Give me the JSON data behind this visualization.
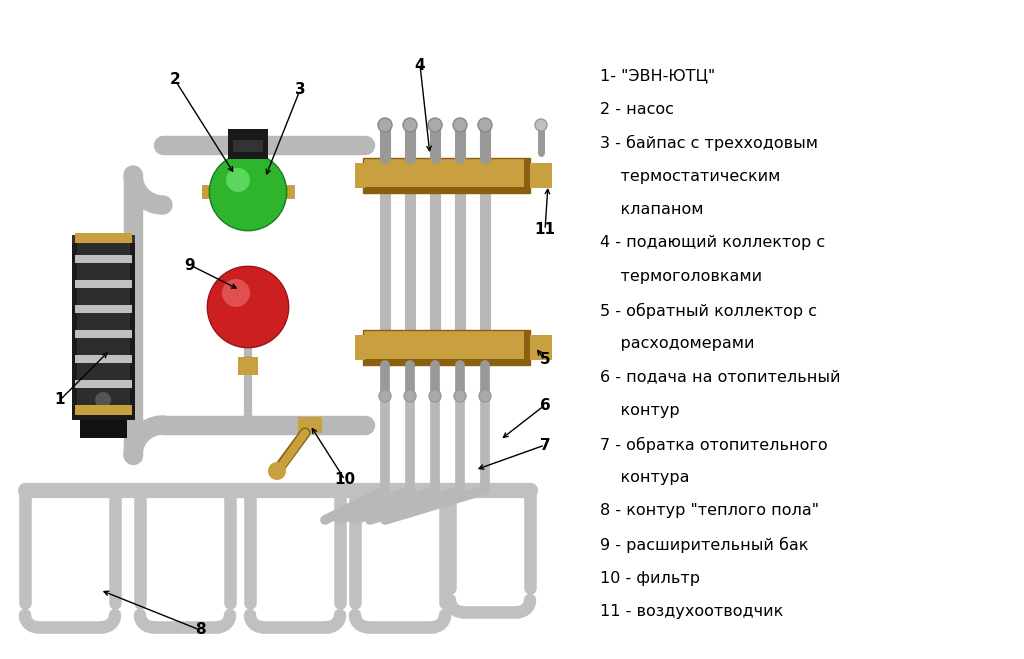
{
  "bg_color": "#ffffff",
  "legend_lines": [
    [
      "1- \"ЭВН-ЮТЦ\"",
      false
    ],
    [
      "2 - насос",
      false
    ],
    [
      "3 - байпас с трехходовым",
      false
    ],
    [
      "    термостатическим",
      true
    ],
    [
      "    клапаном",
      true
    ],
    [
      "4 - подающий коллектор с",
      false
    ],
    [
      "    термоголовками",
      true
    ],
    [
      "5 - обратный коллектор с",
      false
    ],
    [
      "    расходомерами",
      true
    ],
    [
      "6 - подача на отопительный",
      false
    ],
    [
      "    контур",
      true
    ],
    [
      "7 - обратка отопительного",
      false
    ],
    [
      "    контура",
      true
    ],
    [
      "8 - контур \"теплого пола\"",
      false
    ],
    [
      "9 - расширительный бак",
      false
    ],
    [
      "10 - фильтр",
      false
    ],
    [
      "11 - воздухоотводчик",
      false
    ]
  ],
  "pipe_color": "#b8b8b8",
  "pipe_dark": "#888888",
  "collector_color": "#c8a040",
  "collector_dark": "#8a6010",
  "text_color": "#000000",
  "green_color": "#2db52d",
  "green_dark": "#1a7a1a",
  "red_color": "#cc2020",
  "black_color": "#111111",
  "white_color": "#ffffff",
  "gray_color": "#999999"
}
